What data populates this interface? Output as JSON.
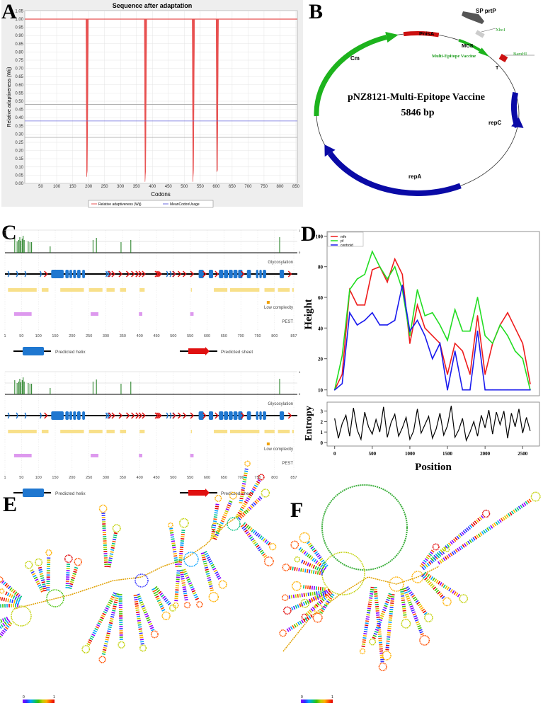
{
  "panel_letters": {
    "a": "A",
    "b": "B",
    "c": "C",
    "d": "D",
    "e": "E",
    "f": "F"
  },
  "chart_data": [
    {
      "panel": "A",
      "type": "line",
      "title": "Sequence after adaptation",
      "xlabel": "Codons",
      "ylabel": "Relative adaptiveness (Wij)",
      "xlim": [
        0,
        857
      ],
      "ylim": [
        0,
        1.05
      ],
      "xticks": [
        50,
        100,
        150,
        200,
        250,
        300,
        350,
        400,
        450,
        500,
        550,
        600,
        650,
        700,
        750,
        800,
        850
      ],
      "yticks": [
        "0.00",
        "0.05",
        "0.10",
        "0.15",
        "0.20",
        "0.25",
        "0.30",
        "0.35",
        "0.40",
        "0.45",
        "0.50",
        "0.55",
        "0.60",
        "0.65",
        "0.70",
        "0.75",
        "0.80",
        "0.85",
        "0.90",
        "0.95",
        "1.00",
        "1.05"
      ],
      "grid": true,
      "series": [
        {
          "name": "Relative adaptiveness (Wij)",
          "color": "#e85050",
          "baseline": 1.0,
          "dips": [
            {
              "x": 195,
              "min": 0.04
            },
            {
              "x": 378,
              "min": 0.01
            },
            {
              "x": 528,
              "min": 0.01
            },
            {
              "x": 603,
              "min": 0.07
            }
          ]
        },
        {
          "name": "MeanCodonUsage",
          "color": "#6a6adc",
          "value": 0.38
        }
      ],
      "reference_lines": [
        0.48,
        0.28
      ],
      "legend": "bottom"
    },
    {
      "panel": "D",
      "type": "line",
      "xlabel": "Position",
      "ylabel": "Height",
      "xticks": [
        0,
        500,
        1000,
        1500,
        2000,
        2500
      ],
      "yticks": [
        10,
        20,
        40,
        60,
        80,
        100
      ],
      "legend": "top-left",
      "x": [
        0,
        100,
        200,
        300,
        400,
        500,
        600,
        700,
        800,
        900,
        1000,
        1100,
        1200,
        1300,
        1400,
        1500,
        1600,
        1700,
        1800,
        1900,
        2000,
        2100,
        2200,
        2300,
        2400,
        2500,
        2600
      ],
      "series": [
        {
          "name": "mfe",
          "color": "#ee1c1c",
          "values": [
            10,
            15,
            65,
            55,
            55,
            78,
            80,
            70,
            85,
            75,
            30,
            55,
            40,
            35,
            30,
            15,
            30,
            25,
            15,
            48,
            15,
            30,
            42,
            50,
            40,
            30,
            12
          ]
        },
        {
          "name": "pf",
          "color": "#22dd22",
          "values": [
            10,
            22,
            65,
            72,
            75,
            90,
            80,
            72,
            80,
            65,
            35,
            65,
            48,
            50,
            42,
            32,
            52,
            38,
            38,
            60,
            35,
            30,
            42,
            35,
            25,
            20,
            10
          ]
        },
        {
          "name": "centroid",
          "color": "#1a1aee",
          "values": [
            10,
            12,
            50,
            42,
            45,
            50,
            42,
            42,
            45,
            68,
            38,
            45,
            35,
            20,
            30,
            10,
            25,
            10,
            10,
            38,
            10,
            10,
            10,
            10,
            10,
            10,
            10
          ]
        }
      ],
      "entropy": {
        "ylabel": "Entropy",
        "yticks": [
          0,
          1,
          2,
          3
        ],
        "x_step": 50,
        "values": [
          2.3,
          0.4,
          1.8,
          2.6,
          0.6,
          3.3,
          1.2,
          0.3,
          2.9,
          1.5,
          0.8,
          2.2,
          1.0,
          3.4,
          0.5,
          1.9,
          2.7,
          0.6,
          1.4,
          2.4,
          0.3,
          1.1,
          3.2,
          0.9,
          1.7,
          2.5,
          0.4,
          1.3,
          2.8,
          0.7,
          1.6,
          3.5,
          0.5,
          1.2,
          2.3,
          0.2,
          1.0,
          2.0,
          0.6,
          2.6,
          1.4,
          3.1,
          0.8,
          2.9,
          1.7,
          3.0,
          0.4,
          2.8,
          1.5,
          3.2,
          0.9,
          2.4,
          1.1
        ]
      }
    }
  ],
  "plasmid": {
    "name": "pNZ8121-Multi-Epitope Vaccine",
    "size": "5846 bp",
    "features": {
      "cm": "Cm",
      "pnisa": "PnisA",
      "sp": "SP prtP",
      "xhoi": "XhoI",
      "mcs": "MCS",
      "mev": "Multi-Epitope Vaccine",
      "bamhi": "BamHI",
      "t": "T",
      "repc": "repC",
      "repa": "repA"
    },
    "colors": {
      "cm": "#1db31d",
      "pnisa": "#cc1111",
      "sp": "#555555",
      "mev": "#1db31d",
      "t": "#cc1111",
      "rep": "#0a0aa6"
    }
  },
  "panel_c": {
    "tick_labels": [
      "1",
      "50",
      "100",
      "150",
      "200",
      "250",
      "300",
      "350",
      "400",
      "450",
      "500",
      "550",
      "600",
      "650",
      "700",
      "750",
      "800",
      "857"
    ],
    "glycosylation_label": "Glycosylation",
    "low_complexity_label": "Low complexity",
    "pest_label": "PEST",
    "helix_legend": "Predicted helix",
    "sheet_legend": "Predicted sheet",
    "glyco_axis": [
      "1",
      "0"
    ],
    "glycosylation_sites": [
      30,
      37,
      42,
      45,
      48,
      52,
      55,
      58,
      70,
      75,
      80,
      135,
      262,
      272,
      345,
      374,
      815
    ],
    "helices": [
      [
        138,
        175
      ],
      [
        180,
        190
      ],
      [
        192,
        200
      ],
      [
        203,
        212
      ],
      [
        215,
        225
      ],
      [
        230,
        238
      ],
      [
        575,
        590
      ],
      [
        605,
        618
      ],
      [
        635,
        648
      ],
      [
        650,
        662
      ],
      [
        664,
        676
      ],
      [
        678,
        690
      ],
      [
        692,
        705
      ],
      [
        718,
        730
      ],
      [
        745,
        752
      ],
      [
        755,
        762
      ],
      [
        765,
        775
      ],
      [
        815,
        828
      ]
    ],
    "sheets": [
      122,
      312,
      322,
      343,
      365,
      380,
      393,
      402,
      412,
      450,
      455,
      460,
      502,
      518,
      533,
      555,
      592,
      628,
      705,
      845
    ],
    "low_complexity": [
      [
        10,
        95
      ],
      [
        110,
        130
      ],
      [
        165,
        235
      ],
      [
        250,
        290
      ],
      [
        302,
        326
      ],
      [
        342,
        360
      ],
      [
        400,
        415
      ],
      [
        552,
        555
      ],
      [
        620,
        660
      ],
      [
        668,
        755
      ],
      [
        770,
        800
      ],
      [
        810,
        845
      ],
      [
        852,
        857
      ]
    ],
    "pest": [
      [
        28,
        80
      ],
      [
        255,
        278
      ],
      [
        398,
        408
      ],
      [
        550,
        560
      ]
    ],
    "colors": {
      "glyco": "#1a7a1a",
      "helix": "#1f77d0",
      "sheet": "#e01010",
      "low": "#f8e08a",
      "pest": "#dd99ee",
      "low_marker": "#f0a000"
    }
  },
  "panel_ef": {
    "colorbar_min": "0",
    "colorbar_max": "1"
  }
}
